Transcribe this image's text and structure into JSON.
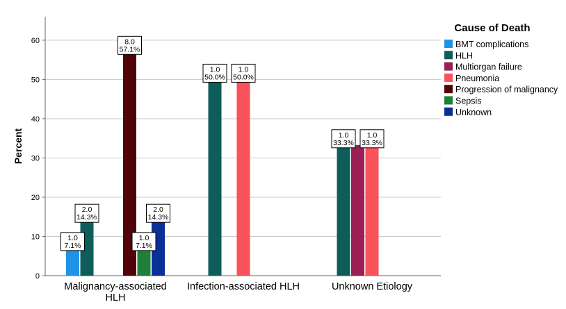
{
  "chart_data": {
    "type": "bar",
    "title": "",
    "xlabel": "",
    "ylabel": "Percent",
    "ylim": [
      0,
      66
    ],
    "yticks": [
      0,
      10,
      20,
      30,
      40,
      50,
      60
    ],
    "grid": true,
    "legend": {
      "title": "Cause of Death",
      "placement": "right"
    },
    "categories": [
      "Malignancy-associated HLH",
      "Infection-associated HLH",
      "Unknown Etiology"
    ],
    "series": [
      {
        "name": "BMT complications",
        "color": "#1f94e6",
        "values": [
          7.1,
          null,
          null
        ],
        "counts": [
          1.0,
          null,
          null
        ],
        "labels": [
          "1.0\n7.1%",
          null,
          null
        ]
      },
      {
        "name": "HLH",
        "color": "#0d5e5a",
        "values": [
          14.3,
          50.0,
          33.3
        ],
        "counts": [
          2.0,
          1.0,
          1.0
        ],
        "labels": [
          "2.0\n14.3%",
          "1.0\n50.0%",
          "1.0\n33.3%"
        ]
      },
      {
        "name": "Multiorgan failure",
        "color": "#9b1f54",
        "values": [
          null,
          null,
          33.3
        ],
        "counts": [
          null,
          null,
          1.0
        ],
        "labels": [
          null,
          null,
          null
        ]
      },
      {
        "name": "Pneumonia",
        "color": "#f9525a",
        "values": [
          null,
          50.0,
          33.3
        ],
        "counts": [
          null,
          1.0,
          1.0
        ],
        "labels": [
          null,
          "1.0\n50.0%",
          "1.0\n33.3%"
        ]
      },
      {
        "name": "Progression of malignancy",
        "color": "#510407",
        "values": [
          57.1,
          null,
          null
        ],
        "counts": [
          8.0,
          null,
          null
        ],
        "labels": [
          "8.0\n57.1%",
          null,
          null
        ]
      },
      {
        "name": "Sepsis",
        "color": "#1f8039",
        "values": [
          7.1,
          null,
          null
        ],
        "counts": [
          1.0,
          null,
          null
        ],
        "labels": [
          "1.0\n7.1%",
          null,
          null
        ]
      },
      {
        "name": "Unknown",
        "color": "#0a2f96",
        "values": [
          14.3,
          null,
          null
        ],
        "counts": [
          2.0,
          null,
          null
        ],
        "labels": [
          "2.0\n14.3%",
          null,
          null
        ]
      }
    ]
  }
}
